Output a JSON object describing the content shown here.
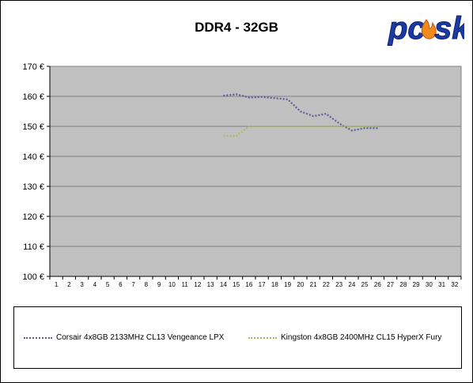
{
  "logo_text": "pcosk",
  "colors": {
    "plot_bg": "#c0c0c0",
    "grid": "#808080",
    "logo_blue": "#1a3aa8",
    "flame": "#f08a1c"
  },
  "chart_data": {
    "type": "line",
    "title": "DDR4 - 32GB",
    "xlabel": "",
    "ylabel": "",
    "x": [
      1,
      2,
      3,
      4,
      5,
      6,
      7,
      8,
      9,
      10,
      11,
      12,
      13,
      14,
      15,
      16,
      17,
      18,
      19,
      20,
      21,
      22,
      23,
      24,
      25,
      26,
      27,
      28,
      29,
      30,
      31,
      32
    ],
    "xlim": [
      1,
      32
    ],
    "ylim": [
      100,
      170
    ],
    "y_ticks": [
      "100 €",
      "110 €",
      "120 €",
      "130 €",
      "140 €",
      "150 €",
      "160 €",
      "170 €"
    ],
    "grid": true,
    "legend_position": "bottom",
    "series": [
      {
        "name": "Corsair 4x8GB 2133MHz CL13 Vengeance LPX",
        "color": "#5c5c9e",
        "points": [
          [
            14,
            160.2
          ],
          [
            15,
            160.7
          ],
          [
            16,
            159.6
          ],
          [
            17,
            159.8
          ],
          [
            18,
            159.4
          ],
          [
            19,
            159.0
          ],
          [
            20,
            155.0
          ],
          [
            21,
            153.4
          ],
          [
            22,
            154.2
          ],
          [
            23,
            151.0
          ],
          [
            24,
            148.6
          ],
          [
            25,
            149.4
          ],
          [
            26,
            149.4
          ]
        ]
      },
      {
        "name": "Kingston 4x8GB 2400MHz CL15 HyperX Fury",
        "color": "#a8be5a",
        "points": [
          [
            14,
            146.8
          ],
          [
            15,
            146.8
          ],
          [
            16,
            150.0
          ],
          [
            17,
            150.0
          ],
          [
            18,
            150.0
          ],
          [
            19,
            150.0
          ],
          [
            20,
            150.0
          ],
          [
            21,
            150.0
          ],
          [
            22,
            150.0
          ],
          [
            23,
            150.0
          ],
          [
            24,
            150.0
          ],
          [
            25,
            150.0
          ],
          [
            26,
            150.0
          ]
        ]
      }
    ]
  }
}
